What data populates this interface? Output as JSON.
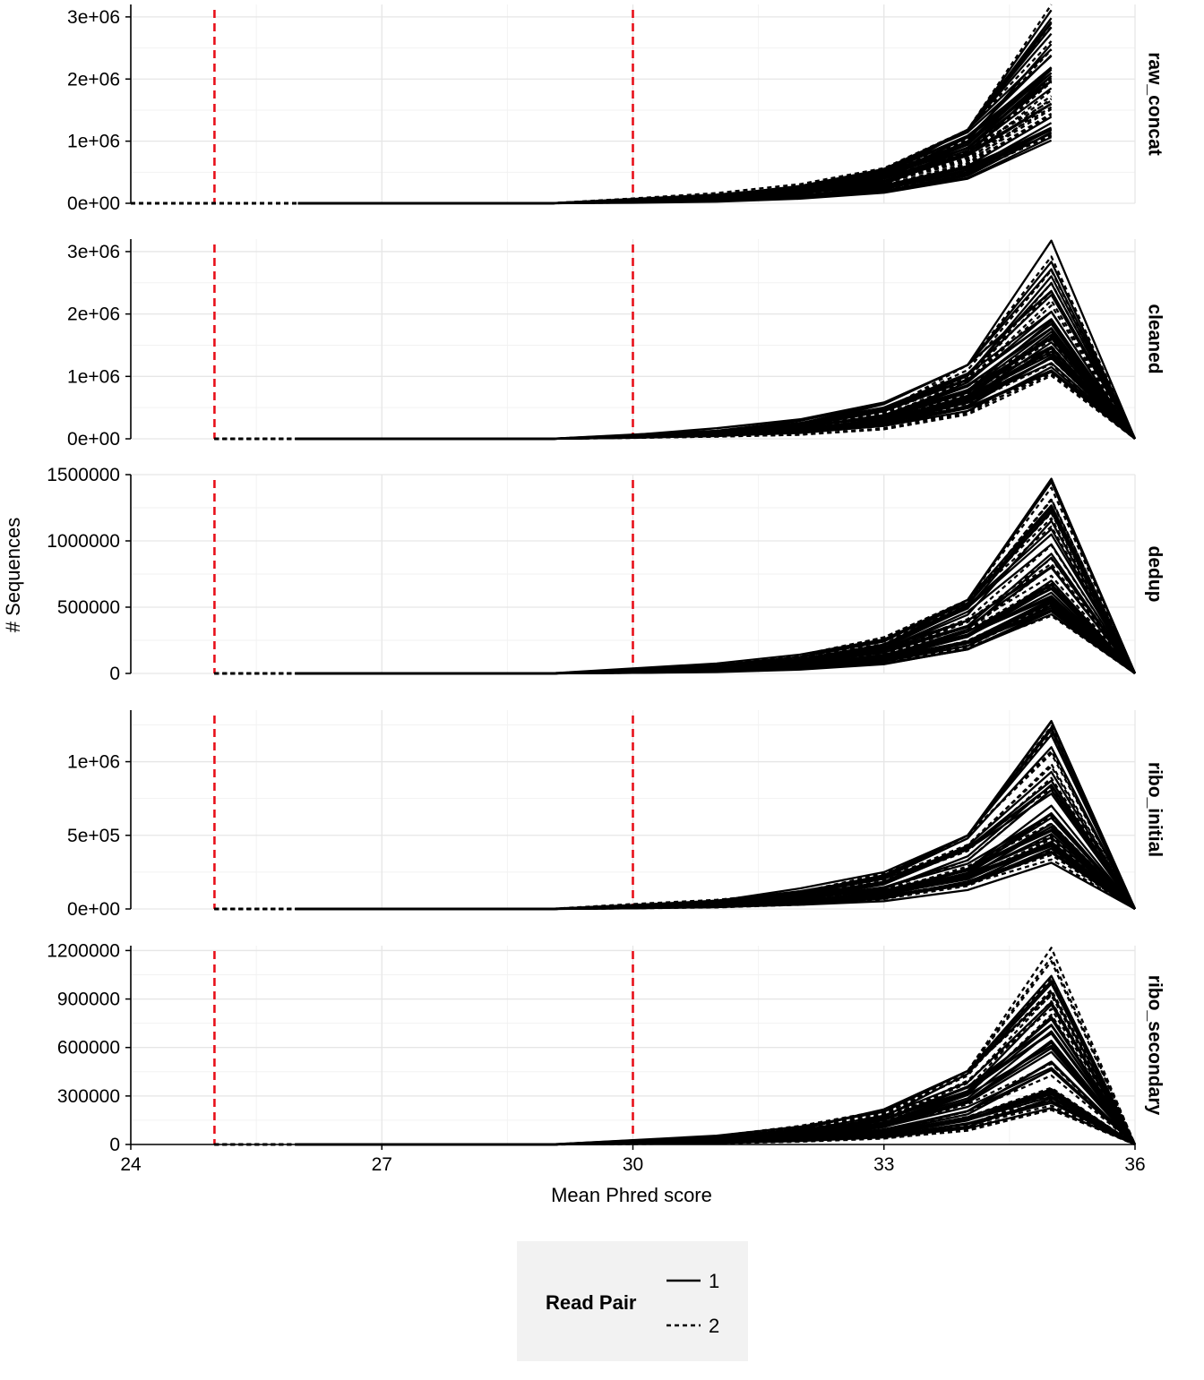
{
  "chart_data": {
    "type": "line",
    "xlabel": "Mean Phred score",
    "ylabel": "# Sequences",
    "xlim": [
      24,
      36
    ],
    "x_ticks": [
      24,
      27,
      30,
      33,
      36
    ],
    "x_tick_labels": [
      "24",
      "27",
      "30",
      "33",
      "36"
    ],
    "grid": true,
    "threshold_lines": {
      "x": [
        25,
        30
      ],
      "color": "#e8101a",
      "style": "dashed"
    },
    "x": [
      24,
      25,
      26,
      27,
      28,
      29,
      30,
      31,
      32,
      33,
      34,
      35,
      36
    ],
    "facets": [
      {
        "label": "raw_concat",
        "ylim": [
          0,
          3200000
        ],
        "y_ticks": [
          0,
          1000000,
          2000000,
          3000000
        ],
        "y_tick_labels": [
          "0e+00",
          "1e+06",
          "2e+06",
          "3e+06"
        ],
        "peak_max": 3200000,
        "peak_min": 1000000,
        "ends_at_36": false
      },
      {
        "label": "cleaned",
        "ylim": [
          0,
          3200000
        ],
        "y_ticks": [
          0,
          1000000,
          2000000,
          3000000
        ],
        "y_tick_labels": [
          "0e+00",
          "1e+06",
          "2e+06",
          "3e+06"
        ],
        "peak_max": 3200000,
        "peak_min": 1000000,
        "ends_at_36": true
      },
      {
        "label": "dedup",
        "ylim": [
          0,
          1500000
        ],
        "y_ticks": [
          0,
          500000,
          1000000,
          1500000
        ],
        "y_tick_labels": [
          "0",
          "500000",
          "1000000",
          "1500000"
        ],
        "peak_max": 1500000,
        "peak_min": 430000,
        "ends_at_36": true
      },
      {
        "label": "ribo_initial",
        "ylim": [
          0,
          1350000
        ],
        "y_ticks": [
          0,
          500000,
          1000000
        ],
        "y_tick_labels": [
          "0e+00",
          "5e+05",
          "1e+06"
        ],
        "peak_max": 1340000,
        "peak_min": 300000,
        "ends_at_36": true
      },
      {
        "label": "ribo_secondary",
        "ylim": [
          0,
          1230000
        ],
        "y_ticks": [
          0,
          300000,
          600000,
          900000,
          1200000
        ],
        "y_tick_labels": [
          "0",
          "300000",
          "600000",
          "900000",
          "1200000"
        ],
        "peak_max": 1220000,
        "peak_min": 200000,
        "ends_at_36": true
      }
    ],
    "legend": {
      "title": "Read Pair",
      "position": "bottom",
      "entries": [
        {
          "label": "1",
          "linetype": "solid"
        },
        {
          "label": "2",
          "linetype": "dashed"
        }
      ]
    }
  }
}
